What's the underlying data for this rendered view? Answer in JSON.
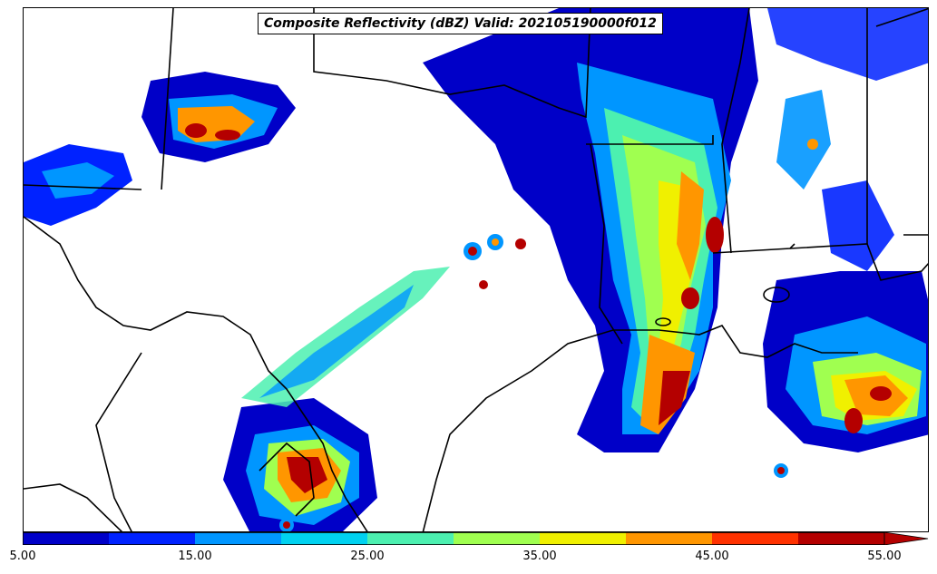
{
  "title": "Composite Reflectivity (dBZ) Valid: 202105190000f012",
  "colorbar": {
    "tick_labels": [
      "5.00",
      "15.00",
      "25.00",
      "35.00",
      "45.00",
      "55.00"
    ],
    "tick_values": [
      5,
      15,
      25,
      35,
      45,
      55
    ],
    "range": [
      5,
      57.5
    ],
    "bins": [
      {
        "from": 5,
        "to": 10,
        "color": "#0000c8"
      },
      {
        "from": 10,
        "to": 15,
        "color": "#0022ff"
      },
      {
        "from": 15,
        "to": 20,
        "color": "#0096ff"
      },
      {
        "from": 20,
        "to": 25,
        "color": "#00d2f0"
      },
      {
        "from": 25,
        "to": 30,
        "color": "#4cf0b0"
      },
      {
        "from": 30,
        "to": 35,
        "color": "#a0ff50"
      },
      {
        "from": 35,
        "to": 40,
        "color": "#f0f000"
      },
      {
        "from": 40,
        "to": 45,
        "color": "#ff9600"
      },
      {
        "from": 45,
        "to": 50,
        "color": "#ff3200"
      },
      {
        "from": 50,
        "to": 55,
        "color": "#b40000"
      }
    ],
    "extend_color": "#b40000"
  },
  "map": {
    "background": "#ffffff",
    "boundary_color": "#000000"
  }
}
